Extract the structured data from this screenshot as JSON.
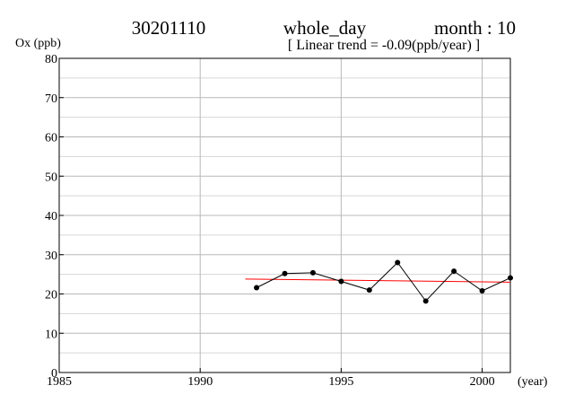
{
  "header": {
    "station": "30201110",
    "period": "whole_day",
    "month": "month : 10",
    "trend": "[ Linear trend = -0.09(ppb/year) ]"
  },
  "chart_data": {
    "type": "line",
    "ylabel": "Ox (ppb)",
    "xlabel": "(year)",
    "xlim": [
      1985,
      2001
    ],
    "ylim": [
      0,
      80
    ],
    "x_ticks": [
      1985,
      1990,
      1995,
      2000
    ],
    "y_ticks": [
      0,
      10,
      20,
      30,
      40,
      50,
      60,
      70,
      80
    ],
    "grid": true,
    "series": [
      {
        "x": [
          1992,
          1993,
          1994,
          1995,
          1996,
          1997,
          1998,
          1999,
          2000,
          2001
        ],
        "values": [
          21.6,
          25.2,
          25.4,
          23.2,
          21.0,
          28.0,
          18.2,
          25.8,
          20.8,
          24.1
        ],
        "color": "#000000"
      }
    ],
    "trend_line": {
      "x": [
        1991.6,
        2001
      ],
      "values": [
        23.8,
        23.0
      ],
      "color": "#ff0000"
    }
  }
}
